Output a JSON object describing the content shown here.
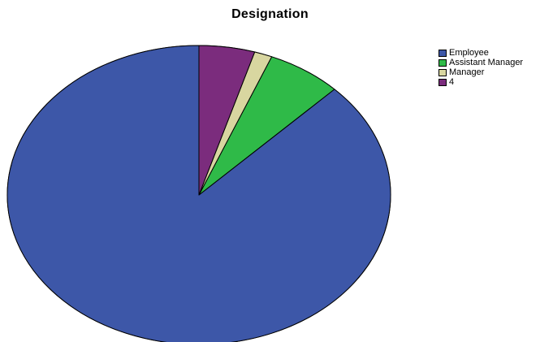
{
  "chart_data": {
    "type": "pie",
    "title": "Designation",
    "categories": [
      "Employee",
      "Assistant Manager",
      "Manager",
      "4"
    ],
    "values": [
      87.5,
      6.3,
      1.5,
      4.7
    ],
    "colors": [
      "#3d57a8",
      "#2fba48",
      "#d8d6a0",
      "#7b2c7d"
    ],
    "start_angle_deg": 0,
    "direction": "counterclockwise",
    "legend_position": "top-right",
    "grid": false
  }
}
